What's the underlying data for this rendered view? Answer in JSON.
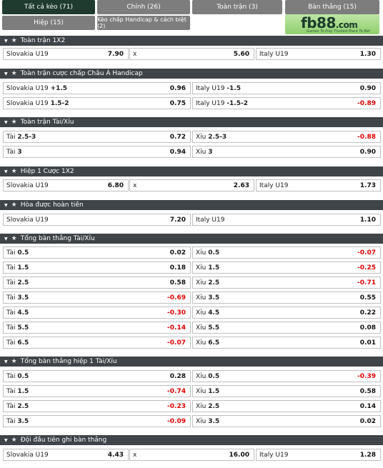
{
  "tabs": {
    "all": "Tất cả kèo (71)",
    "main": "Chính (26)",
    "fulltime": "Toàn trận (3)",
    "goals": "Bàn thắng (15)",
    "half": "Hiệp (15)",
    "handicap": "Kèo chấp Handicap & cách biệt (2)"
  },
  "logo": {
    "brand_a": "fb",
    "brand_b": "88",
    "brand_c": ".com",
    "slogan": "Games To Play   Trusted Place To Bet"
  },
  "colors": {
    "header_bg": "#3e4448",
    "active_tab": "#1f3b2f",
    "tab_bg": "#7d7d7d",
    "negative": "#e00000"
  },
  "sections": {
    "s1": {
      "title": "Toàn trận 1X2",
      "row": {
        "home": "Slovakia U19",
        "home_odds": "7.90",
        "draw": "x",
        "draw_odds": "5.60",
        "away": "Italy U19",
        "away_odds": "1.30"
      }
    },
    "s2": {
      "title": "Toàn trận cược chấp Châu Á Handicap",
      "rows": [
        {
          "l_team": "Slovakia U19",
          "l_line": "+1.5",
          "l_odds": "0.96",
          "r_team": "Italy U19",
          "r_line": "-1.5",
          "r_odds": "0.90"
        },
        {
          "l_team": "Slovakia U19",
          "l_line": "1.5-2",
          "l_odds": "0.75",
          "r_team": "Italy U19",
          "r_line": "-1.5-2",
          "r_odds": "-0.89"
        }
      ]
    },
    "s3": {
      "title": "Toàn trận Tài/Xỉu",
      "rows": [
        {
          "l_pre": "Tài",
          "l_line": "2.5-3",
          "l_odds": "0.72",
          "r_pre": "Xỉu",
          "r_line": "2.5-3",
          "r_odds": "-0.88"
        },
        {
          "l_pre": "Tài",
          "l_line": "3",
          "l_odds": "0.94",
          "r_pre": "Xỉu",
          "r_line": "3",
          "r_odds": "0.90"
        }
      ]
    },
    "s4": {
      "title": "Hiệp 1 Cược 1X2",
      "row": {
        "home": "Slovakia U19",
        "home_odds": "6.80",
        "draw": "x",
        "draw_odds": "2.63",
        "away": "Italy U19",
        "away_odds": "1.73"
      }
    },
    "s5": {
      "title": "Hòa được hoàn tiền",
      "row": {
        "home": "Slovakia U19",
        "home_odds": "7.20",
        "away": "Italy U19",
        "away_odds": "1.10"
      }
    },
    "s6": {
      "title": "Tổng bàn thắng Tài/Xỉu",
      "rows": [
        {
          "l_pre": "Tài",
          "l_line": "0.5",
          "l_odds": "0.02",
          "r_pre": "Xỉu",
          "r_line": "0.5",
          "r_odds": "-0.07"
        },
        {
          "l_pre": "Tài",
          "l_line": "1.5",
          "l_odds": "0.18",
          "r_pre": "Xỉu",
          "r_line": "1.5",
          "r_odds": "-0.25"
        },
        {
          "l_pre": "Tài",
          "l_line": "2.5",
          "l_odds": "0.58",
          "r_pre": "Xỉu",
          "r_line": "2.5",
          "r_odds": "-0.71"
        },
        {
          "l_pre": "Tài",
          "l_line": "3.5",
          "l_odds": "-0.69",
          "r_pre": "Xỉu",
          "r_line": "3.5",
          "r_odds": "0.55"
        },
        {
          "l_pre": "Tài",
          "l_line": "4.5",
          "l_odds": "-0.30",
          "r_pre": "Xỉu",
          "r_line": "4.5",
          "r_odds": "0.22"
        },
        {
          "l_pre": "Tài",
          "l_line": "5.5",
          "l_odds": "-0.14",
          "r_pre": "Xỉu",
          "r_line": "5.5",
          "r_odds": "0.08"
        },
        {
          "l_pre": "Tài",
          "l_line": "6.5",
          "l_odds": "-0.07",
          "r_pre": "Xỉu",
          "r_line": "6.5",
          "r_odds": "0.01"
        }
      ]
    },
    "s7": {
      "title": "Tổng bàn thắng hiệp 1 Tài/Xỉu",
      "rows": [
        {
          "l_pre": "Tài",
          "l_line": "0.5",
          "l_odds": "0.28",
          "r_pre": "Xỉu",
          "r_line": "0.5",
          "r_odds": "-0.39"
        },
        {
          "l_pre": "Tài",
          "l_line": "1.5",
          "l_odds": "-0.74",
          "r_pre": "Xỉu",
          "r_line": "1.5",
          "r_odds": "0.58"
        },
        {
          "l_pre": "Tài",
          "l_line": "2.5",
          "l_odds": "-0.23",
          "r_pre": "Xỉu",
          "r_line": "2.5",
          "r_odds": "0.14"
        },
        {
          "l_pre": "Tài",
          "l_line": "3.5",
          "l_odds": "-0.09",
          "r_pre": "Xỉu",
          "r_line": "3.5",
          "r_odds": "0.02"
        }
      ]
    },
    "s8": {
      "title": "Đội đầu tiên ghi bàn thắng",
      "row": {
        "home": "Slovakia U19",
        "home_odds": "4.43",
        "draw": "x",
        "draw_odds": "16.00",
        "away": "Italy U19",
        "away_odds": "1.28"
      }
    }
  }
}
